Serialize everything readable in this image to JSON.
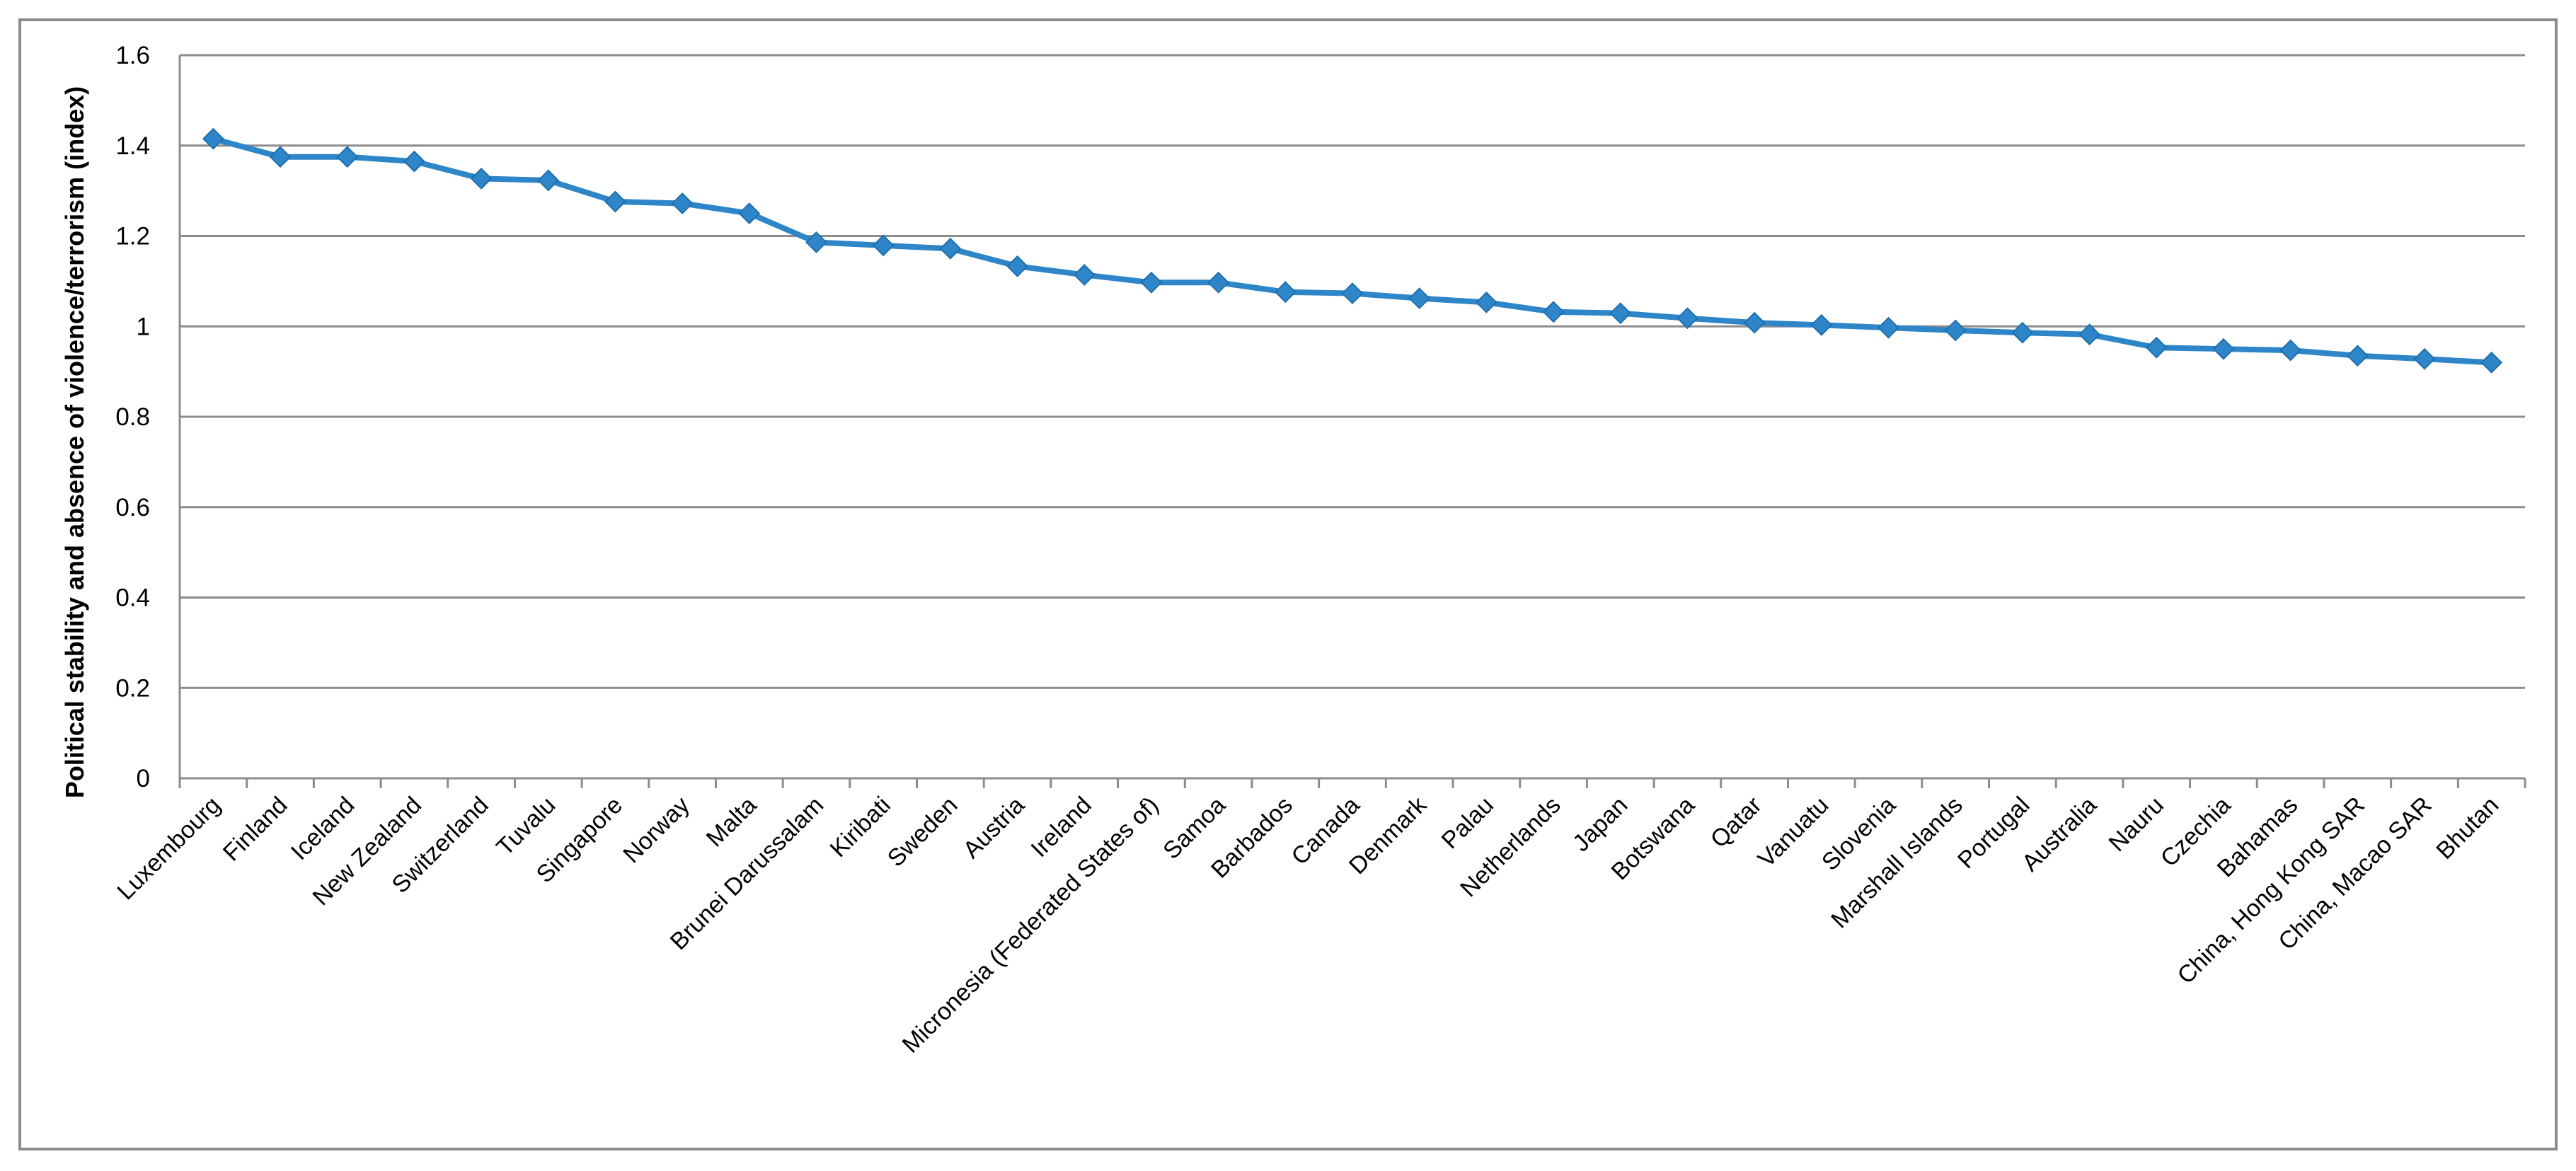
{
  "chart_data": {
    "type": "line",
    "title": "",
    "xlabel": "",
    "ylabel": "Political stability and absence of violence/terrorism (index)",
    "ylim": [
      0,
      1.6
    ],
    "yticks": [
      0,
      0.2,
      0.4,
      0.6,
      0.8,
      1,
      1.2,
      1.4,
      1.6
    ],
    "ytick_labels": [
      "0",
      "0.2",
      "0.4",
      "0.6",
      "0.8",
      "1",
      "1.2",
      "1.4",
      "1.6"
    ],
    "grid": true,
    "legend": "none",
    "line_color": "#2e86c8",
    "marker": "diamond",
    "categories": [
      "Luxembourg",
      "Finland",
      "Iceland",
      "New Zealand",
      "Switzerland",
      "Tuvalu",
      "Singapore",
      "Norway",
      "Malta",
      "Brunei Darussalam",
      "Kiribati",
      "Sweden",
      "Austria",
      "Ireland",
      "Micronesia (Federated States of)",
      "Samoa",
      "Barbados",
      "Canada",
      "Denmark",
      "Palau",
      "Netherlands",
      "Japan",
      "Botswana",
      "Qatar",
      "Vanuatu",
      "Slovenia",
      "Marshall Islands",
      "Portugal",
      "Australia",
      "Nauru",
      "Czechia",
      "Bahamas",
      "China, Hong Kong SAR",
      "China, Macao SAR",
      "Bhutan"
    ],
    "values": [
      1.415,
      1.375,
      1.375,
      1.365,
      1.327,
      1.323,
      1.276,
      1.272,
      1.25,
      1.186,
      1.179,
      1.172,
      1.133,
      1.114,
      1.097,
      1.097,
      1.076,
      1.073,
      1.062,
      1.053,
      1.032,
      1.029,
      1.018,
      1.008,
      1.003,
      0.997,
      0.991,
      0.986,
      0.982,
      0.953,
      0.95,
      0.947,
      0.935,
      0.928,
      0.92
    ]
  }
}
